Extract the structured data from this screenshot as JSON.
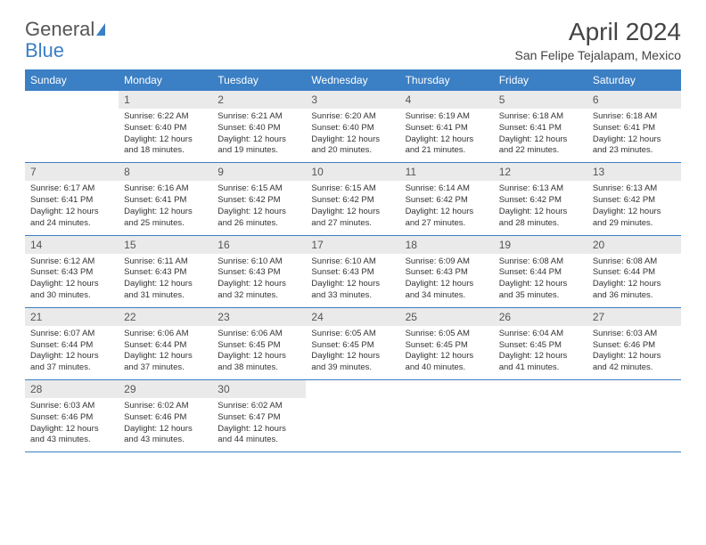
{
  "logo": {
    "part1": "General",
    "part2": "Blue"
  },
  "title": "April 2024",
  "location": "San Felipe Tejalapam, Mexico",
  "colors": {
    "accent": "#3b7fc4",
    "header_text": "#ffffff",
    "daynum_bg": "#eaeaea",
    "text": "#333333",
    "row_border": "#3b7fc4"
  },
  "day_headers": [
    "Sunday",
    "Monday",
    "Tuesday",
    "Wednesday",
    "Thursday",
    "Friday",
    "Saturday"
  ],
  "weeks": [
    [
      {
        "num": "",
        "lines": []
      },
      {
        "num": "1",
        "lines": [
          "Sunrise: 6:22 AM",
          "Sunset: 6:40 PM",
          "Daylight: 12 hours",
          "and 18 minutes."
        ]
      },
      {
        "num": "2",
        "lines": [
          "Sunrise: 6:21 AM",
          "Sunset: 6:40 PM",
          "Daylight: 12 hours",
          "and 19 minutes."
        ]
      },
      {
        "num": "3",
        "lines": [
          "Sunrise: 6:20 AM",
          "Sunset: 6:40 PM",
          "Daylight: 12 hours",
          "and 20 minutes."
        ]
      },
      {
        "num": "4",
        "lines": [
          "Sunrise: 6:19 AM",
          "Sunset: 6:41 PM",
          "Daylight: 12 hours",
          "and 21 minutes."
        ]
      },
      {
        "num": "5",
        "lines": [
          "Sunrise: 6:18 AM",
          "Sunset: 6:41 PM",
          "Daylight: 12 hours",
          "and 22 minutes."
        ]
      },
      {
        "num": "6",
        "lines": [
          "Sunrise: 6:18 AM",
          "Sunset: 6:41 PM",
          "Daylight: 12 hours",
          "and 23 minutes."
        ]
      }
    ],
    [
      {
        "num": "7",
        "lines": [
          "Sunrise: 6:17 AM",
          "Sunset: 6:41 PM",
          "Daylight: 12 hours",
          "and 24 minutes."
        ]
      },
      {
        "num": "8",
        "lines": [
          "Sunrise: 6:16 AM",
          "Sunset: 6:41 PM",
          "Daylight: 12 hours",
          "and 25 minutes."
        ]
      },
      {
        "num": "9",
        "lines": [
          "Sunrise: 6:15 AM",
          "Sunset: 6:42 PM",
          "Daylight: 12 hours",
          "and 26 minutes."
        ]
      },
      {
        "num": "10",
        "lines": [
          "Sunrise: 6:15 AM",
          "Sunset: 6:42 PM",
          "Daylight: 12 hours",
          "and 27 minutes."
        ]
      },
      {
        "num": "11",
        "lines": [
          "Sunrise: 6:14 AM",
          "Sunset: 6:42 PM",
          "Daylight: 12 hours",
          "and 27 minutes."
        ]
      },
      {
        "num": "12",
        "lines": [
          "Sunrise: 6:13 AM",
          "Sunset: 6:42 PM",
          "Daylight: 12 hours",
          "and 28 minutes."
        ]
      },
      {
        "num": "13",
        "lines": [
          "Sunrise: 6:13 AM",
          "Sunset: 6:42 PM",
          "Daylight: 12 hours",
          "and 29 minutes."
        ]
      }
    ],
    [
      {
        "num": "14",
        "lines": [
          "Sunrise: 6:12 AM",
          "Sunset: 6:43 PM",
          "Daylight: 12 hours",
          "and 30 minutes."
        ]
      },
      {
        "num": "15",
        "lines": [
          "Sunrise: 6:11 AM",
          "Sunset: 6:43 PM",
          "Daylight: 12 hours",
          "and 31 minutes."
        ]
      },
      {
        "num": "16",
        "lines": [
          "Sunrise: 6:10 AM",
          "Sunset: 6:43 PM",
          "Daylight: 12 hours",
          "and 32 minutes."
        ]
      },
      {
        "num": "17",
        "lines": [
          "Sunrise: 6:10 AM",
          "Sunset: 6:43 PM",
          "Daylight: 12 hours",
          "and 33 minutes."
        ]
      },
      {
        "num": "18",
        "lines": [
          "Sunrise: 6:09 AM",
          "Sunset: 6:43 PM",
          "Daylight: 12 hours",
          "and 34 minutes."
        ]
      },
      {
        "num": "19",
        "lines": [
          "Sunrise: 6:08 AM",
          "Sunset: 6:44 PM",
          "Daylight: 12 hours",
          "and 35 minutes."
        ]
      },
      {
        "num": "20",
        "lines": [
          "Sunrise: 6:08 AM",
          "Sunset: 6:44 PM",
          "Daylight: 12 hours",
          "and 36 minutes."
        ]
      }
    ],
    [
      {
        "num": "21",
        "lines": [
          "Sunrise: 6:07 AM",
          "Sunset: 6:44 PM",
          "Daylight: 12 hours",
          "and 37 minutes."
        ]
      },
      {
        "num": "22",
        "lines": [
          "Sunrise: 6:06 AM",
          "Sunset: 6:44 PM",
          "Daylight: 12 hours",
          "and 37 minutes."
        ]
      },
      {
        "num": "23",
        "lines": [
          "Sunrise: 6:06 AM",
          "Sunset: 6:45 PM",
          "Daylight: 12 hours",
          "and 38 minutes."
        ]
      },
      {
        "num": "24",
        "lines": [
          "Sunrise: 6:05 AM",
          "Sunset: 6:45 PM",
          "Daylight: 12 hours",
          "and 39 minutes."
        ]
      },
      {
        "num": "25",
        "lines": [
          "Sunrise: 6:05 AM",
          "Sunset: 6:45 PM",
          "Daylight: 12 hours",
          "and 40 minutes."
        ]
      },
      {
        "num": "26",
        "lines": [
          "Sunrise: 6:04 AM",
          "Sunset: 6:45 PM",
          "Daylight: 12 hours",
          "and 41 minutes."
        ]
      },
      {
        "num": "27",
        "lines": [
          "Sunrise: 6:03 AM",
          "Sunset: 6:46 PM",
          "Daylight: 12 hours",
          "and 42 minutes."
        ]
      }
    ],
    [
      {
        "num": "28",
        "lines": [
          "Sunrise: 6:03 AM",
          "Sunset: 6:46 PM",
          "Daylight: 12 hours",
          "and 43 minutes."
        ]
      },
      {
        "num": "29",
        "lines": [
          "Sunrise: 6:02 AM",
          "Sunset: 6:46 PM",
          "Daylight: 12 hours",
          "and 43 minutes."
        ]
      },
      {
        "num": "30",
        "lines": [
          "Sunrise: 6:02 AM",
          "Sunset: 6:47 PM",
          "Daylight: 12 hours",
          "and 44 minutes."
        ]
      },
      {
        "num": "",
        "lines": []
      },
      {
        "num": "",
        "lines": []
      },
      {
        "num": "",
        "lines": []
      },
      {
        "num": "",
        "lines": []
      }
    ]
  ]
}
